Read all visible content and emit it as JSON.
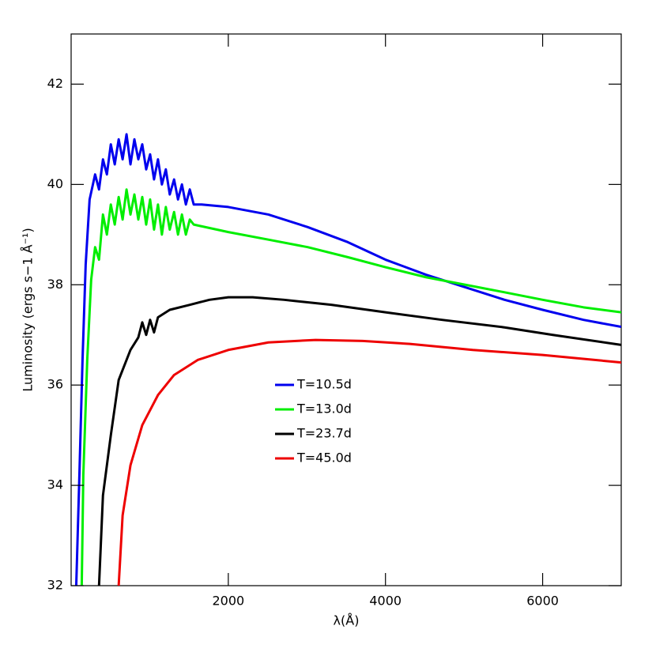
{
  "chart_data": {
    "type": "line",
    "x_label": "λ(Å)",
    "y_label": "Luminosity (ergs s−1 Å⁻¹)",
    "xlim": [
      0,
      7000
    ],
    "ylim": [
      32,
      43
    ],
    "xticks": [
      2000,
      4000,
      6000
    ],
    "yticks": [
      32,
      34,
      36,
      38,
      40,
      42
    ],
    "series": [
      {
        "name": "T=10.5d",
        "color": "#0000ee",
        "x": [
          65,
          105,
          145,
          185,
          235,
          305,
          355,
          405,
          455,
          505,
          555,
          605,
          655,
          705,
          755,
          805,
          855,
          905,
          955,
          1005,
          1055,
          1105,
          1155,
          1205,
          1255,
          1310,
          1360,
          1410,
          1460,
          1510,
          1560,
          1660,
          2000,
          2510,
          3010,
          3520,
          4000,
          4515,
          5015,
          5515,
          6000,
          6520,
          7000
        ],
        "values": [
          32,
          34.2,
          36.5,
          38.4,
          39.7,
          40.2,
          39.9,
          40.5,
          40.2,
          40.8,
          40.4,
          40.9,
          40.5,
          41.0,
          40.4,
          40.9,
          40.5,
          40.8,
          40.3,
          40.6,
          40.1,
          40.5,
          40.0,
          40.3,
          39.8,
          40.1,
          39.7,
          40.0,
          39.6,
          39.9,
          39.6,
          39.6,
          39.55,
          39.4,
          39.15,
          38.85,
          38.5,
          38.2,
          37.95,
          37.7,
          37.5,
          37.3,
          37.16
        ]
      },
      {
        "name": "T=13.0d",
        "color": "#00ee00",
        "x": [
          135,
          155,
          205,
          255,
          305,
          355,
          405,
          455,
          505,
          555,
          605,
          655,
          705,
          755,
          805,
          855,
          905,
          955,
          1005,
          1055,
          1105,
          1155,
          1205,
          1255,
          1310,
          1360,
          1410,
          1460,
          1510,
          1560,
          2000,
          2510,
          3010,
          3520,
          4000,
          4515,
          5015,
          5515,
          6000,
          6520,
          7000
        ],
        "values": [
          32,
          34.2,
          36.5,
          38.1,
          38.75,
          38.5,
          39.4,
          39.0,
          39.6,
          39.2,
          39.75,
          39.3,
          39.9,
          39.4,
          39.8,
          39.3,
          39.75,
          39.2,
          39.7,
          39.1,
          39.6,
          39.0,
          39.55,
          39.1,
          39.45,
          39.0,
          39.4,
          39.0,
          39.3,
          39.2,
          39.05,
          38.9,
          38.75,
          38.55,
          38.35,
          38.15,
          38.0,
          37.85,
          37.7,
          37.55,
          37.45
        ]
      },
      {
        "name": "T=23.7d",
        "color": "#000000",
        "x": [
          355,
          405,
          505,
          605,
          755,
          855,
          905,
          955,
          1005,
          1055,
          1105,
          1255,
          1510,
          1760,
          2000,
          2310,
          2710,
          3310,
          4000,
          4720,
          5515,
          6130,
          7000
        ],
        "values": [
          32,
          33.8,
          35.0,
          36.1,
          36.7,
          36.95,
          37.25,
          37.0,
          37.3,
          37.05,
          37.35,
          37.5,
          37.6,
          37.7,
          37.75,
          37.75,
          37.7,
          37.6,
          37.45,
          37.3,
          37.15,
          37.0,
          36.8
        ]
      },
      {
        "name": "T=45.0d",
        "color": "#ee0000",
        "x": [
          605,
          655,
          755,
          905,
          1105,
          1310,
          1610,
          2000,
          2510,
          3110,
          3710,
          4310,
          5110,
          6000,
          7000
        ],
        "values": [
          32,
          33.4,
          34.4,
          35.2,
          35.8,
          36.2,
          36.5,
          36.7,
          36.85,
          36.9,
          36.88,
          36.82,
          36.7,
          36.6,
          36.45
        ]
      }
    ]
  }
}
